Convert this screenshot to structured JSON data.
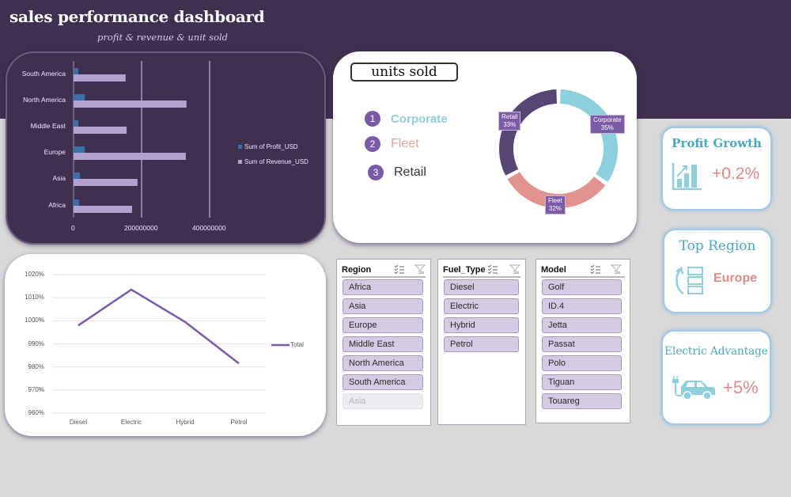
{
  "header": {
    "title": "sales performance dashboard",
    "subtitle": "profit & revenue & unit  sold"
  },
  "colors": {
    "header_bg": "#3f3050",
    "profit_bar": "#3d6ea8",
    "revenue_bar": "#b3a2cf",
    "corporate": "#8ecfde",
    "fleet": "#e2928f",
    "retail": "#574575",
    "line": "#7a5aa6",
    "kpi_title": "#4aa8c0",
    "kpi_value": "#e08a8a"
  },
  "bar_chart": {
    "regions": [
      "South America",
      "North America",
      "Middle East",
      "Europe",
      "Asia",
      "Africa"
    ],
    "x_ticks": [
      "0",
      "200000000",
      "400000000"
    ],
    "legend": [
      "Sum of Profit_USD",
      "Sum of Revenue_USD"
    ]
  },
  "units_sold": {
    "title": "units sold",
    "ranking": [
      {
        "num": "1",
        "label": "Corporate"
      },
      {
        "num": "2",
        "label": "Fleet"
      },
      {
        "num": "3",
        "label": "Retail"
      }
    ],
    "donut_labels": [
      {
        "name": "Corporate",
        "pct": "35%"
      },
      {
        "name": "Fleet",
        "pct": "32%"
      },
      {
        "name": "Retail",
        "pct": "33%"
      }
    ]
  },
  "line_chart": {
    "y_ticks": [
      "1020%",
      "1010%",
      "1000%",
      "990%",
      "980%",
      "970%",
      "960%"
    ],
    "x_ticks": [
      "Diesel",
      "Electric",
      "Hybrid",
      "Petrol"
    ],
    "legend": "Total"
  },
  "slicers": {
    "region": {
      "title": "Region",
      "items": [
        "Africa",
        "Asia",
        "Europe",
        "Middle East",
        "North America",
        "South America"
      ],
      "dim_item": "Asia"
    },
    "fuel_type": {
      "title": "Fuel_Type",
      "items": [
        "Diesel",
        "Electric",
        "Hybrid",
        "Petrol"
      ]
    },
    "model": {
      "title": "Model",
      "items": [
        "Golf",
        "ID.4",
        "Jetta",
        "Passat",
        "Polo",
        "Tiguan",
        "Touareg"
      ]
    }
  },
  "kpis": {
    "profit_growth": {
      "title": "Profit Growth",
      "value": "+0.2%",
      "icon": "bar-chart-growth-icon"
    },
    "top_region": {
      "title": "Top Region",
      "value": "Europe",
      "icon": "ranking-list-icon"
    },
    "electric_advantage": {
      "title": "Electric Advantage",
      "value": "+5%",
      "icon": "electric-car-icon"
    }
  },
  "chart_data": [
    {
      "type": "bar",
      "orientation": "horizontal",
      "title": "",
      "categories": [
        "South America",
        "North America",
        "Middle East",
        "Europe",
        "Asia",
        "Africa"
      ],
      "series": [
        {
          "name": "Sum of Profit_USD",
          "values": [
            14000000,
            33000000,
            14000000,
            33000000,
            19000000,
            16000000
          ]
        },
        {
          "name": "Sum of Revenue_USD",
          "values": [
            153000000,
            332000000,
            156000000,
            330000000,
            188000000,
            172000000
          ]
        }
      ],
      "x_ticks": [
        "0",
        "200000000",
        "400000000"
      ],
      "xlim": [
        0,
        500000000
      ],
      "grid": "vertical",
      "legend_position": "right"
    },
    {
      "type": "pie",
      "variant": "donut",
      "title": "units sold",
      "categories": [
        "Corporate",
        "Fleet",
        "Retail"
      ],
      "values": [
        35,
        32,
        33
      ],
      "unit": "%"
    },
    {
      "type": "line",
      "title": "",
      "categories": [
        "Diesel",
        "Electric",
        "Hybrid",
        "Petrol"
      ],
      "series": [
        {
          "name": "Total",
          "values": [
            998,
            1013.5,
            999.5,
            981.5
          ]
        }
      ],
      "y_ticks": [
        "960%",
        "970%",
        "980%",
        "990%",
        "1000%",
        "1010%",
        "1020%"
      ],
      "ylim": [
        960,
        1020
      ],
      "unit": "%",
      "grid": "horizontal",
      "legend_position": "right"
    }
  ]
}
